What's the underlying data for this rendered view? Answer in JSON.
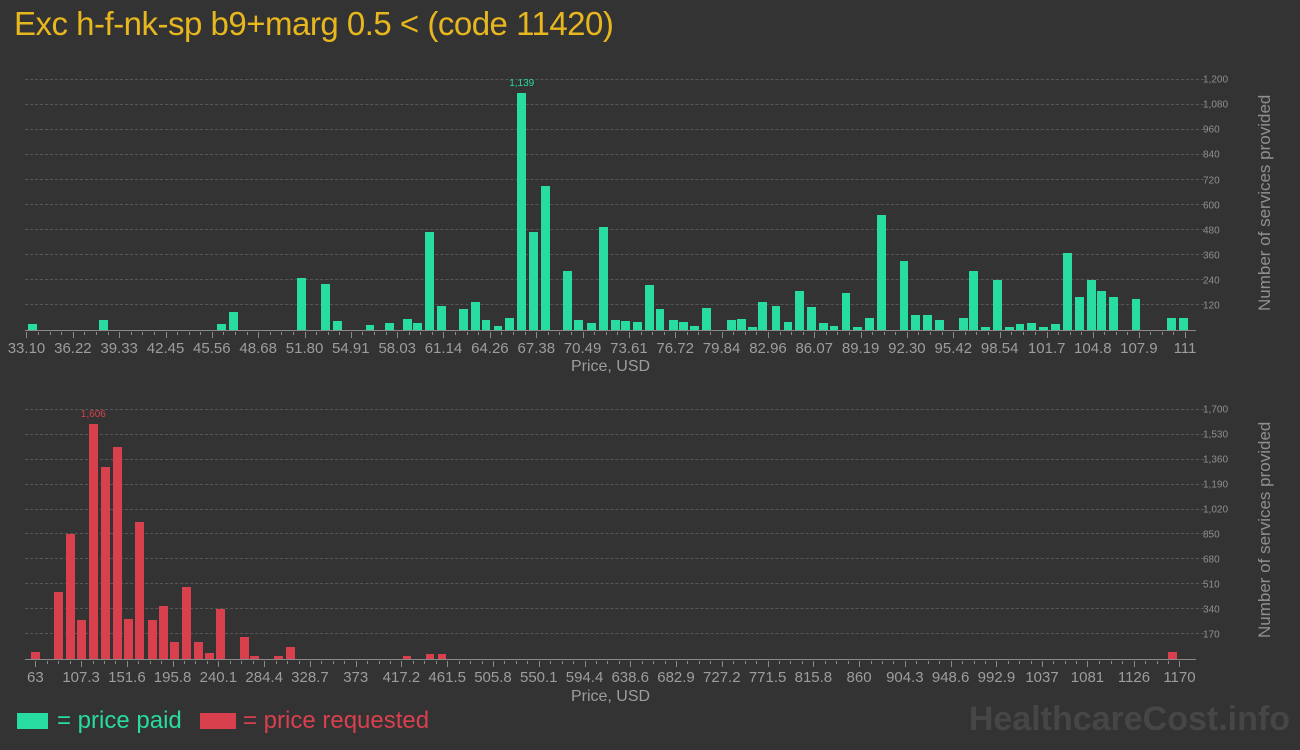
{
  "title": "Exc h-f-nk-sp b9+marg 0.5 < (code 11420)",
  "watermark": "HealthcareCost.info",
  "legend": {
    "paid_label": "= price paid",
    "requested_label": "= price requested"
  },
  "colors": {
    "background": "#333333",
    "title": "#e8b71e",
    "paid": "#28dba0",
    "requested": "#d8404e",
    "axis_text": "#9d9d9d",
    "ytick_text": "#8f8f8f",
    "grid": "#575757",
    "watermark": "#464646"
  },
  "chart_data": [
    {
      "type": "bar",
      "name": "price-paid-histogram",
      "series_name": "price paid",
      "color": "#28dba0",
      "xlabel": "Price, USD",
      "ylabel": "Number of services provided",
      "grid": true,
      "legend_position": "bottom",
      "xlim": [
        33.0,
        111.74
      ],
      "ylim": [
        0,
        1225
      ],
      "bar_width_pct": 0.75,
      "x_ticks": [
        "33.10",
        "36.22",
        "39.33",
        "42.45",
        "45.56",
        "48.68",
        "51.80",
        "54.91",
        "58.03",
        "61.14",
        "64.26",
        "67.38",
        "70.49",
        "73.61",
        "76.72",
        "79.84",
        "82.96",
        "86.07",
        "89.19",
        "92.30",
        "95.42",
        "98.54",
        "101.7",
        "104.8",
        "107.9",
        "111"
      ],
      "y_ticks": [
        "120",
        "240",
        "360",
        "480",
        "600",
        "720",
        "840",
        "960",
        "1,080",
        "1,200"
      ],
      "bars": [
        {
          "x": 33.5,
          "y": 30
        },
        {
          "x": 38.3,
          "y": 48
        },
        {
          "x": 46.2,
          "y": 30
        },
        {
          "x": 47.0,
          "y": 85
        },
        {
          "x": 51.6,
          "y": 250
        },
        {
          "x": 53.2,
          "y": 220
        },
        {
          "x": 54.0,
          "y": 45
        },
        {
          "x": 56.2,
          "y": 24
        },
        {
          "x": 57.5,
          "y": 32
        },
        {
          "x": 58.7,
          "y": 55
        },
        {
          "x": 59.4,
          "y": 32
        },
        {
          "x": 60.2,
          "y": 470
        },
        {
          "x": 61.0,
          "y": 117
        },
        {
          "x": 62.5,
          "y": 100
        },
        {
          "x": 63.3,
          "y": 136
        },
        {
          "x": 64.0,
          "y": 48
        },
        {
          "x": 64.8,
          "y": 19
        },
        {
          "x": 65.6,
          "y": 56
        },
        {
          "x": 66.4,
          "y": 1139,
          "label": "1,139"
        },
        {
          "x": 67.2,
          "y": 470
        },
        {
          "x": 68.0,
          "y": 690
        },
        {
          "x": 69.5,
          "y": 283
        },
        {
          "x": 70.2,
          "y": 48
        },
        {
          "x": 71.1,
          "y": 32
        },
        {
          "x": 71.9,
          "y": 495
        },
        {
          "x": 72.7,
          "y": 48
        },
        {
          "x": 73.4,
          "y": 45
        },
        {
          "x": 74.2,
          "y": 40
        },
        {
          "x": 75.0,
          "y": 216
        },
        {
          "x": 75.7,
          "y": 100
        },
        {
          "x": 76.6,
          "y": 48
        },
        {
          "x": 77.3,
          "y": 40
        },
        {
          "x": 78.0,
          "y": 19
        },
        {
          "x": 78.8,
          "y": 107
        },
        {
          "x": 80.5,
          "y": 48
        },
        {
          "x": 81.2,
          "y": 51
        },
        {
          "x": 81.9,
          "y": 13
        },
        {
          "x": 82.6,
          "y": 136
        },
        {
          "x": 83.5,
          "y": 117
        },
        {
          "x": 84.3,
          "y": 40
        },
        {
          "x": 85.1,
          "y": 187
        },
        {
          "x": 85.9,
          "y": 112
        },
        {
          "x": 86.7,
          "y": 32
        },
        {
          "x": 87.4,
          "y": 19
        },
        {
          "x": 88.2,
          "y": 180
        },
        {
          "x": 89.0,
          "y": 16
        },
        {
          "x": 89.8,
          "y": 56
        },
        {
          "x": 90.6,
          "y": 552
        },
        {
          "x": 92.1,
          "y": 331
        },
        {
          "x": 92.9,
          "y": 72
        },
        {
          "x": 93.7,
          "y": 72
        },
        {
          "x": 94.5,
          "y": 48
        },
        {
          "x": 96.1,
          "y": 56
        },
        {
          "x": 96.8,
          "y": 283
        },
        {
          "x": 97.6,
          "y": 16
        },
        {
          "x": 98.4,
          "y": 240
        },
        {
          "x": 99.2,
          "y": 13
        },
        {
          "x": 99.9,
          "y": 29
        },
        {
          "x": 100.7,
          "y": 35
        },
        {
          "x": 101.5,
          "y": 13
        },
        {
          "x": 102.3,
          "y": 29
        },
        {
          "x": 103.1,
          "y": 370
        },
        {
          "x": 103.9,
          "y": 160
        },
        {
          "x": 104.7,
          "y": 240
        },
        {
          "x": 105.4,
          "y": 187
        },
        {
          "x": 106.2,
          "y": 160
        },
        {
          "x": 107.7,
          "y": 150
        },
        {
          "x": 110.1,
          "y": 59
        },
        {
          "x": 110.9,
          "y": 59
        }
      ]
    },
    {
      "type": "bar",
      "name": "price-requested-histogram",
      "series_name": "price requested",
      "color": "#d8404e",
      "xlabel": "Price, USD",
      "ylabel": "Number of services provided",
      "grid": true,
      "legend_position": "bottom",
      "xlim": [
        53,
        1186
      ],
      "ylim": [
        0,
        1768
      ],
      "bar_width_pct": 0.75,
      "x_ticks": [
        "63",
        "107.3",
        "151.6",
        "195.8",
        "240.1",
        "284.4",
        "328.7",
        "373",
        "417.2",
        "461.5",
        "505.8",
        "550.1",
        "594.4",
        "638.6",
        "682.9",
        "727.2",
        "771.5",
        "815.8",
        "860",
        "904.3",
        "948.6",
        "992.9",
        "1037",
        "1081",
        "1126",
        "1170"
      ],
      "y_ticks": [
        "170",
        "340",
        "510",
        "680",
        "850",
        "1,020",
        "1,190",
        "1,360",
        "1,530",
        "1,700"
      ],
      "bars": [
        {
          "x": 63,
          "y": 50
        },
        {
          "x": 85.7,
          "y": 455
        },
        {
          "x": 96.8,
          "y": 855
        },
        {
          "x": 107.5,
          "y": 265
        },
        {
          "x": 119.1,
          "y": 1606,
          "label": "1,606"
        },
        {
          "x": 130.7,
          "y": 1310
        },
        {
          "x": 142.3,
          "y": 1450
        },
        {
          "x": 152.9,
          "y": 270
        },
        {
          "x": 163.5,
          "y": 935
        },
        {
          "x": 176.1,
          "y": 265
        },
        {
          "x": 186.8,
          "y": 360
        },
        {
          "x": 197.9,
          "y": 113
        },
        {
          "x": 209.0,
          "y": 490
        },
        {
          "x": 220.6,
          "y": 113
        },
        {
          "x": 231.3,
          "y": 40
        },
        {
          "x": 241.9,
          "y": 340
        },
        {
          "x": 265.1,
          "y": 147
        },
        {
          "x": 274.8,
          "y": 18
        },
        {
          "x": 298.0,
          "y": 23
        },
        {
          "x": 309.6,
          "y": 80
        },
        {
          "x": 422.6,
          "y": 18
        },
        {
          "x": 444.9,
          "y": 34
        },
        {
          "x": 456.5,
          "y": 34
        },
        {
          "x": 1163,
          "y": 48
        }
      ]
    }
  ]
}
